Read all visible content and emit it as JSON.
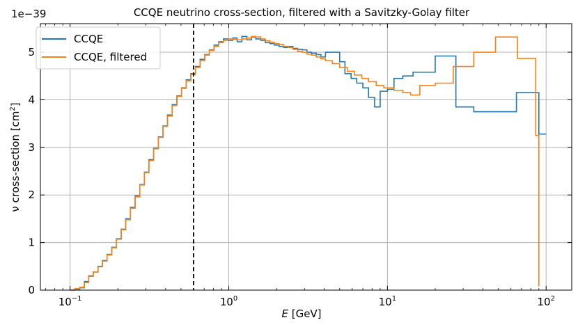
{
  "chart_data": {
    "type": "line",
    "drawstyle": "steps",
    "title": "CCQE neutrino cross-section, filtered with a Savitzky-Golay filter",
    "xlabel_var": "E",
    "xlabel_unit": "[GeV]",
    "ylabel_text": "ν cross-section [cm",
    "ylabel_sup": "2",
    "ylabel_close": "]",
    "offset_text": "1e−39",
    "x_scale": "log",
    "xlim": [
      0.065,
      145
    ],
    "ylim": [
      0,
      5.6
    ],
    "grid": true,
    "legend_position": "upper-left",
    "x_ticks": [
      {
        "value": 0.1,
        "base": "10",
        "exp": "−1"
      },
      {
        "value": 1,
        "base": "10",
        "exp": "0"
      },
      {
        "value": 10,
        "base": "10",
        "exp": "1"
      },
      {
        "value": 100,
        "base": "10",
        "exp": "2"
      }
    ],
    "y_ticks": [
      0,
      1,
      2,
      3,
      4,
      5
    ],
    "vline": {
      "x": 0.6,
      "style": "dashed",
      "color": "#000000"
    },
    "series": [
      {
        "name": "CCQE",
        "color": "#1f77b4",
        "x": [
          0.1,
          0.107,
          0.115,
          0.123,
          0.131,
          0.14,
          0.15,
          0.16,
          0.171,
          0.183,
          0.196,
          0.21,
          0.224,
          0.24,
          0.257,
          0.275,
          0.294,
          0.314,
          0.336,
          0.36,
          0.385,
          0.411,
          0.44,
          0.471,
          0.504,
          0.539,
          0.577,
          0.617,
          0.66,
          0.706,
          0.755,
          0.808,
          0.865,
          0.925,
          0.99,
          1.06,
          1.13,
          1.21,
          1.3,
          1.39,
          1.48,
          1.59,
          1.7,
          1.82,
          1.94,
          2.08,
          2.22,
          2.38,
          2.54,
          2.72,
          2.91,
          3.11,
          3.33,
          3.56,
          3.81,
          4.07,
          5.0,
          5.4,
          5.9,
          6.4,
          7.0,
          7.6,
          8.3,
          9.0,
          10.0,
          11.0,
          12.5,
          14.5,
          20.0,
          27.0,
          35.0,
          65.0,
          90.0,
          100.0
        ],
        "y": [
          0.0,
          0.02,
          0.05,
          0.18,
          0.3,
          0.38,
          0.5,
          0.62,
          0.75,
          0.9,
          1.08,
          1.28,
          1.5,
          1.74,
          1.98,
          2.22,
          2.48,
          2.74,
          2.98,
          3.22,
          3.45,
          3.68,
          3.9,
          4.08,
          4.25,
          4.42,
          4.55,
          4.7,
          4.85,
          4.95,
          5.05,
          5.15,
          5.22,
          5.28,
          5.25,
          5.3,
          5.22,
          5.33,
          5.26,
          5.32,
          5.28,
          5.25,
          5.2,
          5.18,
          5.15,
          5.12,
          5.1,
          5.12,
          5.08,
          5.06,
          5.05,
          5.0,
          4.98,
          4.95,
          4.9,
          5.0,
          4.8,
          4.55,
          4.45,
          4.35,
          4.25,
          4.05,
          3.85,
          4.18,
          4.22,
          4.45,
          4.5,
          4.58,
          4.92,
          3.85,
          3.75,
          4.15,
          3.28,
          3.28
        ]
      },
      {
        "name": "CCQE, filtered",
        "color": "#ff7f0e",
        "x": [
          0.1,
          0.107,
          0.115,
          0.123,
          0.131,
          0.14,
          0.15,
          0.16,
          0.171,
          0.183,
          0.196,
          0.21,
          0.224,
          0.24,
          0.257,
          0.275,
          0.294,
          0.314,
          0.336,
          0.36,
          0.385,
          0.411,
          0.44,
          0.471,
          0.504,
          0.539,
          0.577,
          0.617,
          0.66,
          0.706,
          0.755,
          0.808,
          0.865,
          0.925,
          0.99,
          1.06,
          1.13,
          1.21,
          1.3,
          1.39,
          1.48,
          1.59,
          1.7,
          1.82,
          1.94,
          2.08,
          2.22,
          2.38,
          2.54,
          2.72,
          2.91,
          3.11,
          3.33,
          3.56,
          3.81,
          4.07,
          4.5,
          5.0,
          5.6,
          6.2,
          6.9,
          7.6,
          8.5,
          9.5,
          11.0,
          12.5,
          14.0,
          16.0,
          20.0,
          26.0,
          35.0,
          48.0,
          66.0,
          86.0,
          90.0
        ],
        "y": [
          0.0,
          0.03,
          0.06,
          0.16,
          0.29,
          0.38,
          0.49,
          0.61,
          0.74,
          0.89,
          1.07,
          1.27,
          1.48,
          1.72,
          1.96,
          2.21,
          2.47,
          2.72,
          2.97,
          3.21,
          3.44,
          3.66,
          3.88,
          4.07,
          4.24,
          4.4,
          4.53,
          4.68,
          4.82,
          4.94,
          5.04,
          5.13,
          5.2,
          5.25,
          5.28,
          5.27,
          5.26,
          5.28,
          5.3,
          5.33,
          5.32,
          5.28,
          5.24,
          5.21,
          5.18,
          5.16,
          5.12,
          5.1,
          5.06,
          5.02,
          5.0,
          4.96,
          4.94,
          4.9,
          4.86,
          4.82,
          4.76,
          4.68,
          4.6,
          4.52,
          4.45,
          4.38,
          4.3,
          4.25,
          4.2,
          4.15,
          4.1,
          4.3,
          4.35,
          4.7,
          5.0,
          5.32,
          4.87,
          3.25,
          0.08
        ]
      }
    ]
  }
}
